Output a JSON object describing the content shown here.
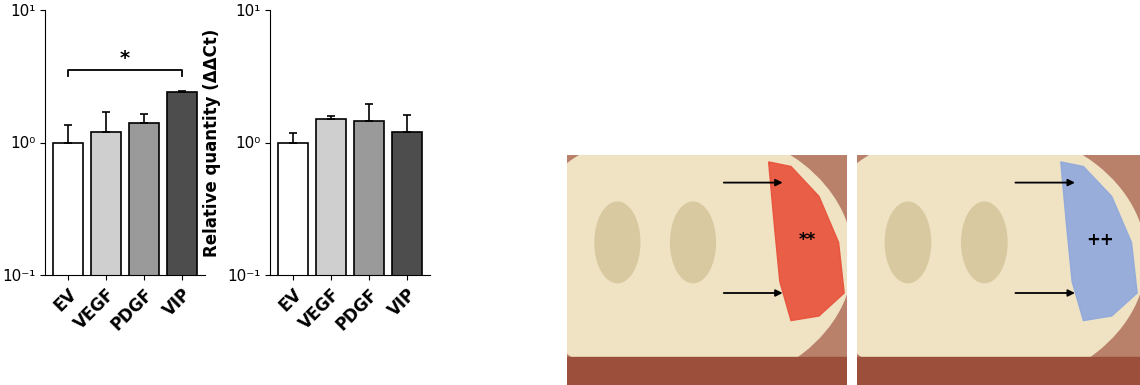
{
  "chart_data": [
    {
      "type": "bar",
      "categories": [
        "EV",
        "VEGF",
        "PDGF",
        "VIP"
      ],
      "values": [
        1.0,
        1.2,
        1.4,
        2.4
      ],
      "errors": [
        0.35,
        0.5,
        0.25,
        0.05
      ],
      "colors": [
        "#ffffff",
        "#cfcfcf",
        "#9a9a9a",
        "#4d4d4d"
      ],
      "log": "y",
      "ylim": [
        0.1,
        10
      ],
      "yticks": [
        {
          "value": 0.1,
          "label": "10⁻¹"
        },
        {
          "value": 1,
          "label": "10⁰"
        },
        {
          "value": 10,
          "label": "10¹"
        }
      ],
      "significance": {
        "from": "EV",
        "to": "VIP",
        "label": "*"
      }
    },
    {
      "type": "bar",
      "categories": [
        "EV",
        "VEGF",
        "PDGF",
        "VIP"
      ],
      "values": [
        1.0,
        1.5,
        1.45,
        1.2
      ],
      "errors": [
        0.18,
        0.08,
        0.5,
        0.4
      ],
      "colors": [
        "#ffffff",
        "#cfcfcf",
        "#9a9a9a",
        "#4d4d4d"
      ],
      "y_label": "Relative quantity (ΔΔCt)",
      "log": "y",
      "ylim": [
        0.1,
        10
      ],
      "yticks": [
        {
          "value": 0.1,
          "label": "10⁻¹"
        },
        {
          "value": 1,
          "label": "10⁰"
        },
        {
          "value": 10,
          "label": "10¹"
        }
      ]
    }
  ],
  "images": [
    {
      "annotation": "**",
      "color": "#e8503a"
    },
    {
      "annotation": "++",
      "color": "#8fa8dc"
    }
  ]
}
